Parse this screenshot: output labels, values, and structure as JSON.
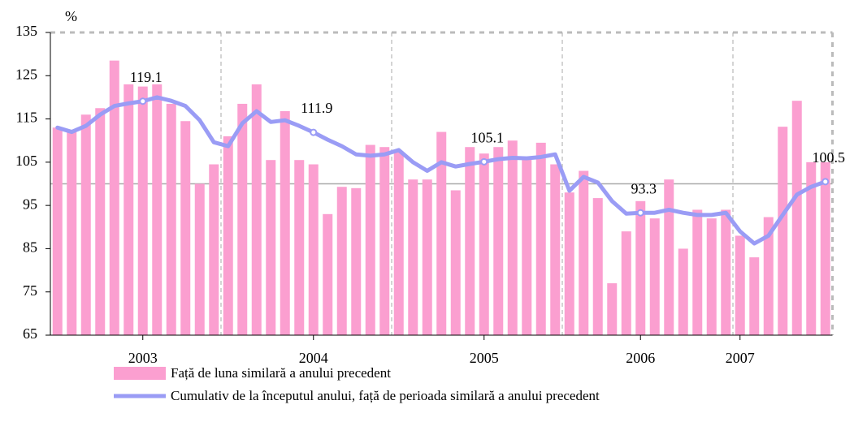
{
  "chart_data": {
    "type": "bar_line",
    "y_unit": "%",
    "categories": [
      null,
      null,
      null,
      null,
      null,
      null,
      "2003",
      null,
      null,
      null,
      null,
      null,
      null,
      null,
      null,
      null,
      null,
      null,
      "2004",
      null,
      null,
      null,
      null,
      null,
      null,
      null,
      null,
      null,
      null,
      null,
      "2005",
      null,
      null,
      null,
      null,
      null,
      null,
      null,
      null,
      null,
      null,
      "2006",
      null,
      null,
      null,
      null,
      null,
      null,
      "2007",
      null,
      null,
      null,
      null,
      null,
      null
    ],
    "series": [
      {
        "name": "Față de luna similară a anului precedent",
        "type": "bar",
        "color": "#fb9fd0",
        "values": [
          113,
          112,
          116,
          117.5,
          128.5,
          123,
          122.5,
          123,
          118.5,
          114.5,
          100,
          104.5,
          111,
          118.5,
          123,
          105.5,
          116.8,
          105.5,
          104.5,
          93,
          99.3,
          99,
          109,
          108.5,
          107.5,
          101,
          101,
          112,
          98.5,
          108.5,
          107,
          108.5,
          110,
          106,
          109.5,
          104.5,
          98,
          103,
          96.7,
          77,
          89,
          96,
          92,
          101,
          85,
          94,
          92,
          94,
          88,
          83,
          92.3,
          113.2,
          119.2,
          105,
          105
        ]
      },
      {
        "name": "Cumulativ de la începutul anului, față de perioada similară a anului precedent",
        "type": "line",
        "color": "#9a9cf5",
        "values": [
          113,
          112,
          113.4,
          116,
          118,
          118.6,
          119.1,
          120,
          119.2,
          118,
          114.7,
          109.6,
          108.7,
          114,
          116.8,
          114.3,
          114.7,
          113.4,
          111.9,
          110.2,
          108.7,
          106.8,
          106.5,
          106.8,
          107.8,
          105,
          103,
          105,
          104,
          104.6,
          105.1,
          105.7,
          106,
          105.9,
          106.2,
          106.8,
          98.4,
          101.6,
          100.3,
          96,
          93.1,
          93.3,
          93.3,
          94,
          93.3,
          92.8,
          92.8,
          93.3,
          89,
          86.2,
          88,
          92.8,
          97.5,
          99.3,
          100.5
        ],
        "value_labels": [
          null,
          null,
          null,
          null,
          null,
          null,
          "119.1",
          null,
          null,
          null,
          null,
          null,
          null,
          null,
          null,
          null,
          null,
          null,
          "111.9",
          null,
          null,
          null,
          null,
          null,
          null,
          null,
          null,
          null,
          null,
          null,
          "105.1",
          null,
          null,
          null,
          null,
          null,
          null,
          null,
          null,
          null,
          null,
          "93.3",
          null,
          null,
          null,
          null,
          null,
          null,
          null,
          null,
          null,
          null,
          null,
          null,
          "100.5"
        ]
      }
    ],
    "ylim": [
      65,
      135
    ],
    "yticks": [
      65,
      75,
      85,
      95,
      105,
      115,
      125,
      135
    ],
    "reference_line": 100
  }
}
